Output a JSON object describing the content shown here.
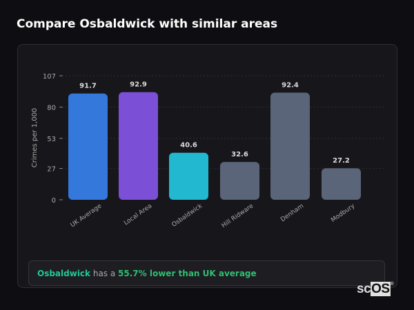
{
  "title": "Compare Osbaldwick with similar areas",
  "chart_data": {
    "type": "bar",
    "ylabel": "Crimes per 1,000",
    "ylim": [
      0,
      107
    ],
    "yticks": [
      0,
      27,
      53,
      80,
      107
    ],
    "categories": [
      "UK Average",
      "Local Area",
      "Osbaldwick",
      "Hill Ridware",
      "Denham",
      "Modbury"
    ],
    "values": [
      91.7,
      92.9,
      40.6,
      32.6,
      92.4,
      27.2
    ],
    "colors": [
      "#3478dc",
      "#7b4fd6",
      "#22b8cf",
      "#5b6579",
      "#5b6579",
      "#5b6579"
    ],
    "grid": "dotted horizontal"
  },
  "summary": {
    "area": "Osbaldwick",
    "middle": " has a ",
    "comparison": "55.7% lower than UK average",
    "area_color": "#20c997",
    "comparison_color": "#2fbf71"
  },
  "logo": {
    "text_a": "sc",
    "text_b": "OS",
    "mark": "®"
  }
}
